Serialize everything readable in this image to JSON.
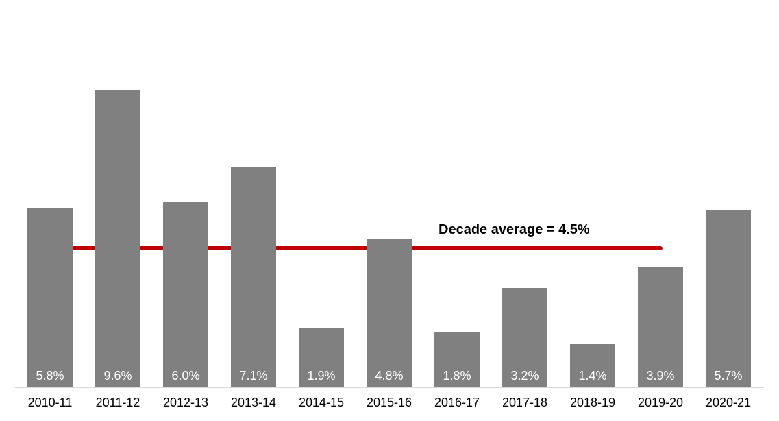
{
  "chart_data": {
    "type": "bar",
    "title": "",
    "xlabel": "",
    "ylabel": "",
    "categories": [
      "2010-11",
      "2011-12",
      "2012-13",
      "2013-14",
      "2014-15",
      "2015-16",
      "2016-17",
      "2017-18",
      "2018-19",
      "2019-20",
      "2020-21"
    ],
    "values": [
      5.8,
      9.6,
      6.0,
      7.1,
      1.9,
      4.8,
      1.8,
      3.2,
      1.4,
      3.9,
      5.7
    ],
    "value_labels": [
      "5.8%",
      "9.6%",
      "6.0%",
      "7.1%",
      "1.9%",
      "4.8%",
      "1.8%",
      "3.2%",
      "1.4%",
      "3.9%",
      "5.7%"
    ],
    "value_label_position": "inside-bottom",
    "average_line": {
      "value": 4.5,
      "label": "Decade average = 4.5%"
    },
    "ylim": [
      0,
      12.5
    ],
    "grid": false,
    "legend": false,
    "colors": {
      "bar": "#808080",
      "bar_label": "#ffffff",
      "average_line": "#c00000",
      "annotation_text": "#000000",
      "axis_line": "#d9d9d9",
      "tick_label": "#000000",
      "background": "#ffffff"
    }
  }
}
